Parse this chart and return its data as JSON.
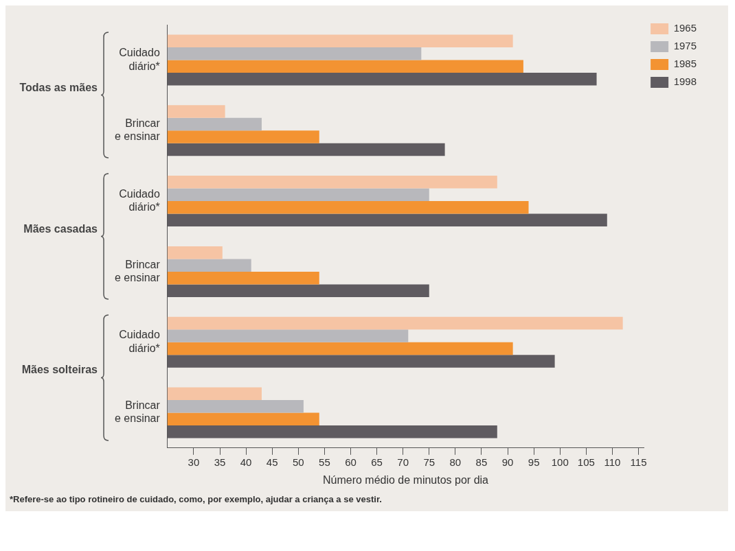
{
  "chart_data": {
    "type": "bar",
    "orientation": "horizontal",
    "xlabel": "Número médio de minutos por dia",
    "categories": [
      "Cuidado diário*",
      "Brincar e ensinar",
      "Cuidado diário*",
      "Brincar e ensinar",
      "Cuidado diário*",
      "Brincar e ensinar"
    ],
    "series": [
      {
        "name": "1965",
        "color": "#f6c4a4",
        "values": [
          91,
          36,
          88,
          35.5,
          112,
          43
        ]
      },
      {
        "name": "1975",
        "color": "#b8b8bc",
        "values": [
          73.5,
          43,
          75,
          41,
          71,
          51
        ]
      },
      {
        "name": "1985",
        "color": "#f39332",
        "values": [
          93,
          54,
          94,
          54,
          91,
          54
        ]
      },
      {
        "name": "1998",
        "color": "#5f5b60",
        "values": [
          107,
          78,
          109,
          75,
          99,
          88
        ]
      }
    ],
    "xlim": [
      25,
      116
    ],
    "xticks": [
      30,
      35,
      40,
      45,
      50,
      55,
      60,
      65,
      70,
      75,
      80,
      85,
      90,
      95,
      100,
      105,
      110,
      115
    ],
    "legend": "top right",
    "annotations": [
      "Todas as mães",
      "Mães casadas",
      "Mães solteiras",
      "*Refere-se ao tipo rotineiro de cuidado, como, por exemplo, ajudar a criança a se vestir."
    ]
  }
}
